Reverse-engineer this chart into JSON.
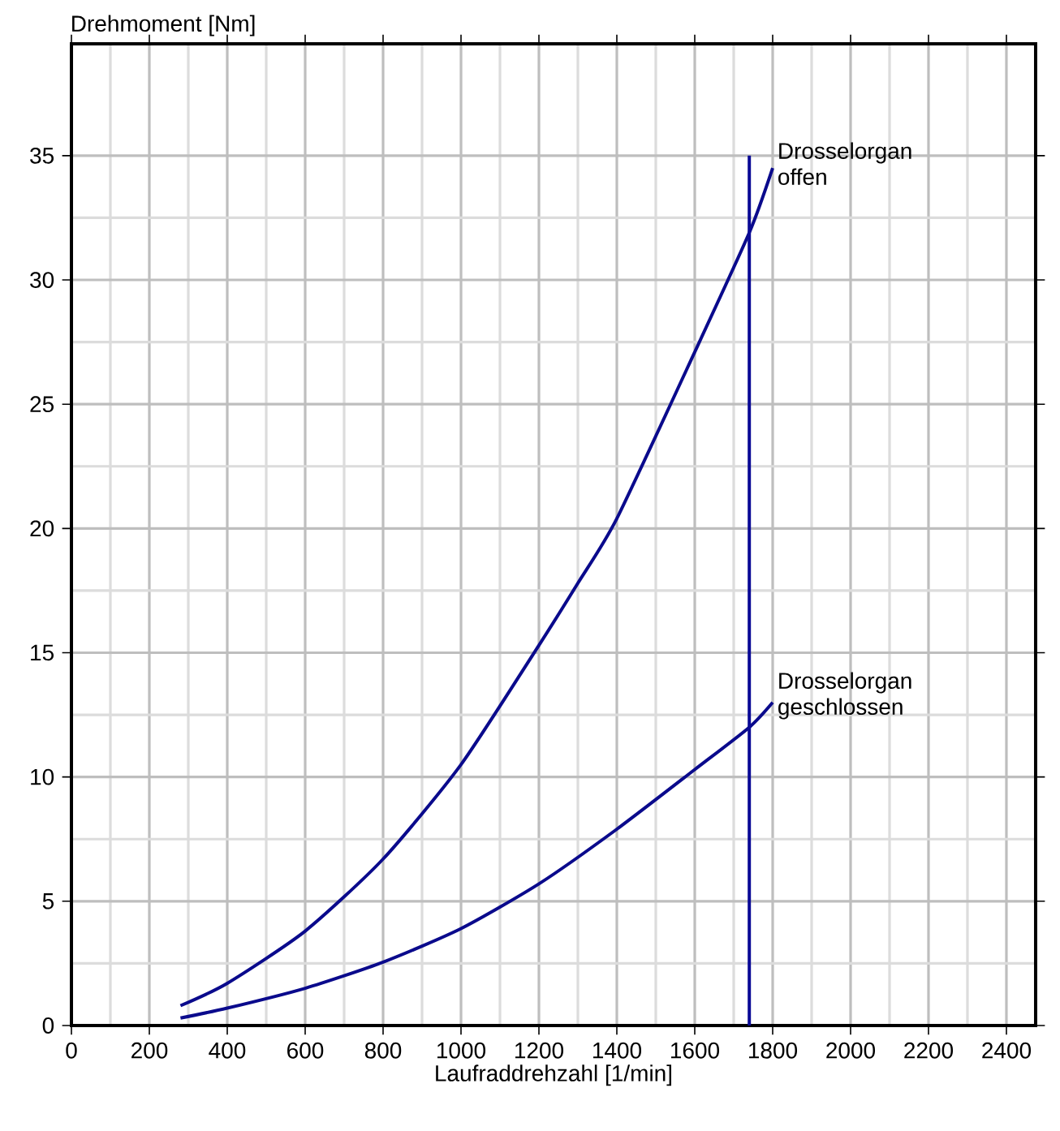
{
  "chart_data": {
    "type": "line",
    "xlabel": "Laufraddrehzahl [1/min]",
    "ylabel": "Drehmoment [Nm]",
    "xlim": [
      0,
      2475
    ],
    "ylim": [
      0,
      39.5
    ],
    "xticks": [
      0,
      200,
      400,
      600,
      800,
      1000,
      1200,
      1400,
      1600,
      1800,
      2000,
      2200,
      2400
    ],
    "yticks": [
      0,
      5,
      10,
      15,
      20,
      25,
      30,
      35
    ],
    "grid": true,
    "marker": "none",
    "line_style": "solid",
    "series": [
      {
        "name": "Drosselorgan offen",
        "color": "#0a0a8c",
        "x": [
          280,
          400,
          600,
          800,
          1000,
          1200,
          1300,
          1400,
          1600,
          1740,
          1800
        ],
        "values": [
          0.8,
          1.7,
          3.8,
          6.7,
          10.5,
          15.3,
          17.8,
          20.4,
          27.1,
          31.9,
          34.5
        ]
      },
      {
        "name": "Drosselorgan geschlossen",
        "color": "#0a0a8c",
        "x": [
          280,
          400,
          600,
          800,
          1000,
          1200,
          1400,
          1600,
          1740,
          1800
        ],
        "values": [
          0.3,
          0.7,
          1.5,
          2.55,
          3.9,
          5.7,
          7.9,
          10.3,
          12.0,
          13.0
        ]
      },
      {
        "color": "#0a0a96",
        "x": [
          1740,
          1740
        ],
        "values": [
          0,
          35
        ]
      }
    ]
  }
}
